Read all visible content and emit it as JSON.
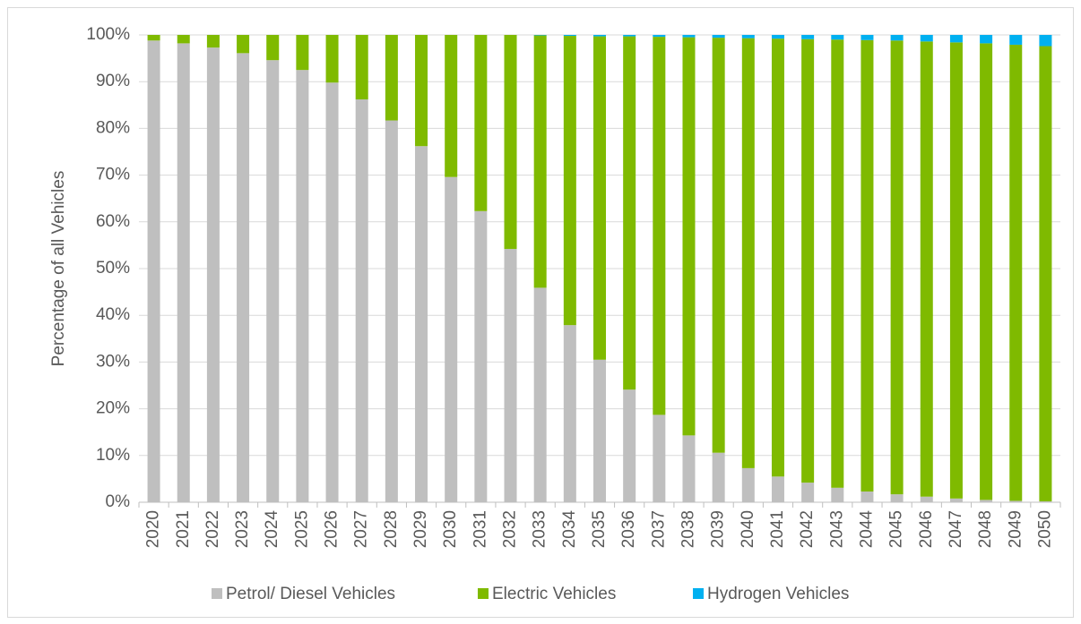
{
  "chart_data": {
    "type": "stacked_bar",
    "y_label": "Percentage of all Vehicles",
    "categories": [
      "2020",
      "2021",
      "2022",
      "2023",
      "2024",
      "2025",
      "2026",
      "2027",
      "2028",
      "2029",
      "2030",
      "2031",
      "2032",
      "2033",
      "2034",
      "2035",
      "2036",
      "2037",
      "2038",
      "2039",
      "2040",
      "2041",
      "2042",
      "2043",
      "2044",
      "2045",
      "2046",
      "2047",
      "2048",
      "2049",
      "2050"
    ],
    "series": [
      {
        "name": "Petrol/ Diesel Vehicles",
        "color": "#bfbfbf",
        "values": [
          98.8,
          98.2,
          97.3,
          96.1,
          94.6,
          92.5,
          89.8,
          86.2,
          81.7,
          76.2,
          69.6,
          62.3,
          54.2,
          45.9,
          37.9,
          30.5,
          24.1,
          18.7,
          14.3,
          10.6,
          7.3,
          5.5,
          4.2,
          3.1,
          2.3,
          1.7,
          1.2,
          0.8,
          0.5,
          0.3,
          0.2
        ]
      },
      {
        "name": "Electric Vehicles",
        "color": "#7fba00",
        "values": [
          1.2,
          1.8,
          2.7,
          3.9,
          5.4,
          7.5,
          10.2,
          13.8,
          18.3,
          23.8,
          30.4,
          37.7,
          45.8,
          54.0,
          61.9,
          69.2,
          75.6,
          80.9,
          85.2,
          88.8,
          92.0,
          93.7,
          94.9,
          95.9,
          96.6,
          97.1,
          97.4,
          97.6,
          97.7,
          97.6,
          97.4
        ]
      },
      {
        "name": "Hydrogen Vehicles",
        "color": "#00b0f0",
        "values": [
          0,
          0,
          0,
          0,
          0,
          0,
          0,
          0,
          0,
          0,
          0,
          0,
          0,
          0.1,
          0.2,
          0.3,
          0.3,
          0.4,
          0.5,
          0.6,
          0.7,
          0.8,
          0.9,
          1.0,
          1.1,
          1.2,
          1.4,
          1.6,
          1.8,
          2.1,
          2.4
        ]
      }
    ],
    "ylim": [
      0,
      100
    ],
    "yticks": [
      {
        "value": 0,
        "label": "0%"
      },
      {
        "value": 10,
        "label": "10%"
      },
      {
        "value": 20,
        "label": "20%"
      },
      {
        "value": 30,
        "label": "30%"
      },
      {
        "value": 40,
        "label": "40%"
      },
      {
        "value": 50,
        "label": "50%"
      },
      {
        "value": 60,
        "label": "60%"
      },
      {
        "value": 70,
        "label": "70%"
      },
      {
        "value": 80,
        "label": "80%"
      },
      {
        "value": 90,
        "label": "90%"
      },
      {
        "value": 100,
        "label": "100%"
      }
    ],
    "grid": true,
    "legend": "bottom"
  }
}
